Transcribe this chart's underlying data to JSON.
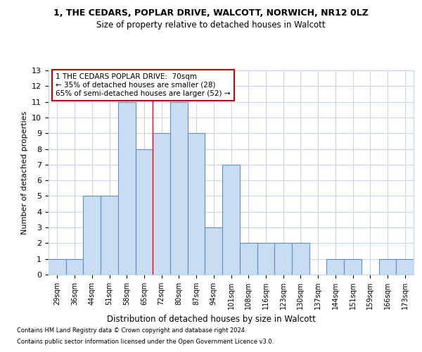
{
  "title1": "1, THE CEDARS, POPLAR DRIVE, WALCOTT, NORWICH, NR12 0LZ",
  "title2": "Size of property relative to detached houses in Walcott",
  "xlabel": "Distribution of detached houses by size in Walcott",
  "ylabel": "Number of detached properties",
  "categories": [
    "29sqm",
    "36sqm",
    "44sqm",
    "51sqm",
    "58sqm",
    "65sqm",
    "72sqm",
    "80sqm",
    "87sqm",
    "94sqm",
    "101sqm",
    "108sqm",
    "116sqm",
    "123sqm",
    "130sqm",
    "137sqm",
    "144sqm",
    "151sqm",
    "159sqm",
    "166sqm",
    "173sqm"
  ],
  "values": [
    1,
    1,
    5,
    5,
    11,
    8,
    9,
    11,
    9,
    3,
    7,
    2,
    2,
    2,
    2,
    0,
    1,
    1,
    0,
    1,
    1
  ],
  "bar_color": "#c9ddf2",
  "bar_edge_color": "#5b8fc9",
  "red_line_x": 5.5,
  "annotation_line1": "1 THE CEDARS POPLAR DRIVE:  70sqm",
  "annotation_line2": "← 35% of detached houses are smaller (28)",
  "annotation_line3": "65% of semi-detached houses are larger (52) →",
  "annotation_box_color": "#ffffff",
  "annotation_box_edge": "#cc0000",
  "annotation_fontsize": 7.5,
  "grid_color": "#c8d8ec",
  "background_color": "#ffffff",
  "footer1": "Contains HM Land Registry data © Crown copyright and database right 2024.",
  "footer2": "Contains public sector information licensed under the Open Government Licence v3.0.",
  "ylim_max": 13,
  "yticks": [
    0,
    1,
    2,
    3,
    4,
    5,
    6,
    7,
    8,
    9,
    10,
    11,
    12,
    13
  ],
  "title1_fontsize": 9,
  "title2_fontsize": 8.5,
  "ylabel_fontsize": 8,
  "xlabel_fontsize": 8.5,
  "footer_fontsize": 6,
  "xtick_fontsize": 7,
  "ytick_fontsize": 8
}
